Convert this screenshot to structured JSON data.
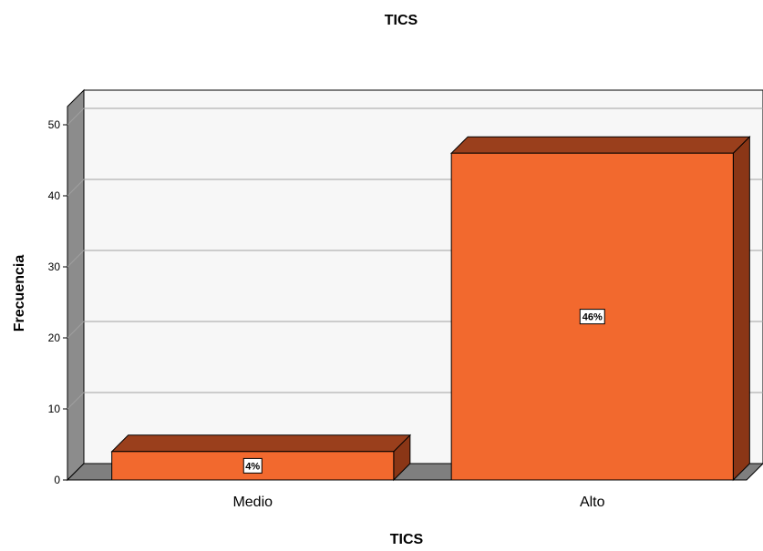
{
  "chart_data": {
    "type": "bar",
    "title": "TICS",
    "xlabel": "TICS",
    "ylabel": "Frecuencia",
    "categories": [
      "Medio",
      "Alto"
    ],
    "values": [
      4,
      46
    ],
    "data_labels": [
      "4%",
      "46%"
    ],
    "ylim": [
      0,
      50
    ],
    "yticks": [
      "0",
      "10",
      "20",
      "30",
      "40",
      "50"
    ],
    "grid": true,
    "legend": "none",
    "colors": {
      "bar_face": "#f2692e",
      "bar_top": "#9a3f1c",
      "bar_side": "#8a3616",
      "wall": "#f7f7f7",
      "floor": "#7f7f7f"
    }
  }
}
